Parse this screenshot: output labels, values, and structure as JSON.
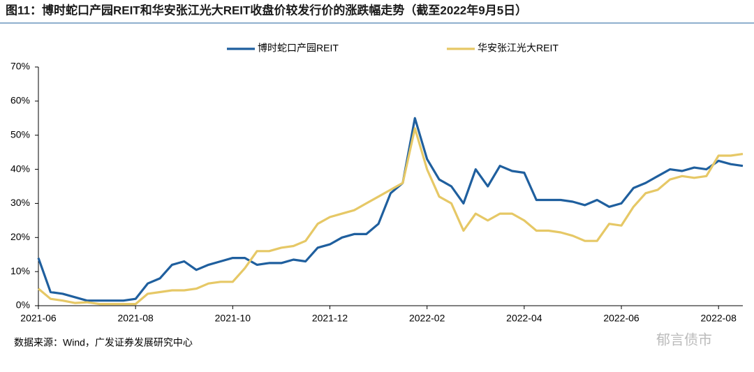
{
  "chart_data": {
    "type": "line",
    "title": "图11：博时蛇口产园REIT和华安张江光大REIT收盘价较发行价的涨跌幅走势（截至2022年9月5日）",
    "source": "数据来源：Wind，广发证券发展研究中心",
    "watermark": "郁言债市",
    "categories": [
      "2021-06",
      null,
      null,
      null,
      null,
      null,
      null,
      null,
      "2021-08",
      null,
      null,
      null,
      null,
      null,
      null,
      null,
      "2021-10",
      null,
      null,
      null,
      null,
      null,
      null,
      null,
      "2021-12",
      null,
      null,
      null,
      null,
      null,
      null,
      null,
      "2022-02",
      null,
      null,
      null,
      null,
      null,
      null,
      null,
      "2022-04",
      null,
      null,
      null,
      null,
      null,
      null,
      null,
      "2022-06",
      null,
      null,
      null,
      null,
      null,
      null,
      null,
      "2022-08",
      null,
      null
    ],
    "series": [
      {
        "name": "博时蛇口产园REIT",
        "color": "#1f5f9e",
        "values": [
          14,
          4,
          3.5,
          2.5,
          1.5,
          1.5,
          1.5,
          1.5,
          2,
          6.5,
          8,
          12,
          13,
          10.5,
          12,
          13,
          14,
          14,
          12,
          12.5,
          12.5,
          13.5,
          13,
          17,
          18,
          20,
          21,
          21,
          24,
          33,
          36,
          55,
          43,
          37,
          35,
          30,
          40,
          35,
          41,
          39.5,
          39,
          31,
          31,
          31,
          30.5,
          29.5,
          31,
          29,
          30,
          34.5,
          36,
          38,
          40,
          39.5,
          40.5,
          40,
          42.5,
          41.5,
          41
        ]
      },
      {
        "name": "华安张江光大REIT",
        "color": "#e6c866",
        "values": [
          5,
          2,
          1.5,
          0.8,
          1,
          0.5,
          0.5,
          0.5,
          0.5,
          3.5,
          4,
          4.5,
          4.5,
          5,
          6.5,
          7,
          7,
          11,
          16,
          16,
          17,
          17.5,
          19,
          24,
          26,
          27,
          28,
          30,
          32,
          34,
          36,
          52,
          40,
          32,
          30,
          22,
          27,
          25,
          27,
          27,
          25,
          22,
          22,
          21.5,
          20.5,
          19,
          19,
          24,
          23.5,
          29,
          33,
          34,
          37,
          38,
          37.5,
          38,
          44,
          44,
          44.5
        ]
      }
    ],
    "ylim": [
      0,
      70
    ],
    "yticks": [
      {
        "value": 0,
        "label": "0%"
      },
      {
        "value": 10,
        "label": "10%"
      },
      {
        "value": 20,
        "label": "20%"
      },
      {
        "value": 30,
        "label": "30%"
      },
      {
        "value": 40,
        "label": "40%"
      },
      {
        "value": 50,
        "label": "50%"
      },
      {
        "value": 60,
        "label": "60%"
      },
      {
        "value": 70,
        "label": "70%"
      }
    ],
    "legend": "top",
    "grid": false
  }
}
